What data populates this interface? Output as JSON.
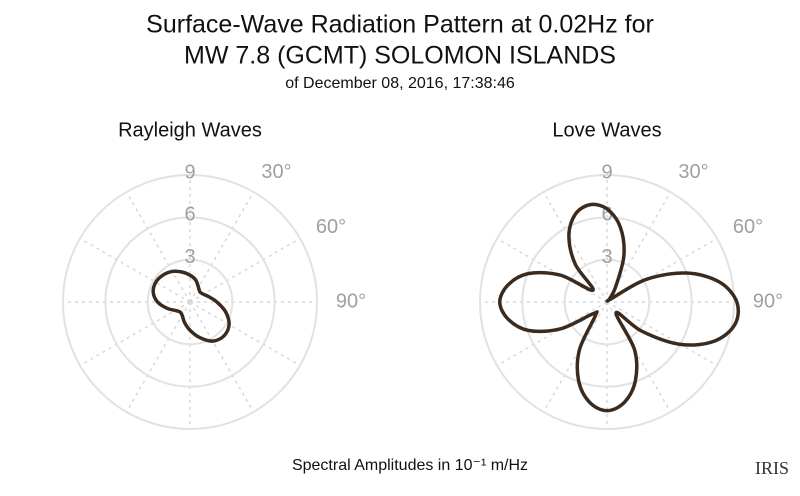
{
  "title": [
    "Surface-Wave Radiation Pattern at 0.02Hz for",
    "MW 7.8 (GCMT) SOLOMON ISLANDS"
  ],
  "subtitle": "of December 08, 2016, 17:38:46",
  "footer": "Spectral Amplitudes in 10⁻¹ m/Hz",
  "logo": "IRIS",
  "chart_data": [
    {
      "type": "polar",
      "title": "Rayleigh Waves",
      "color": "#3b2a1e",
      "theta": [
        0,
        15,
        30,
        45,
        60,
        75,
        90,
        105,
        120,
        135,
        150,
        165,
        180,
        195,
        210,
        225,
        240,
        255,
        270,
        285,
        300,
        315,
        330,
        345
      ],
      "r": [
        1.9,
        1.6,
        1.2,
        1.0,
        1.1,
        1.4,
        1.9,
        2.6,
        3.2,
        3.4,
        3.2,
        2.6,
        2.0,
        1.5,
        1.1,
        1.0,
        1.2,
        1.7,
        2.3,
        2.7,
        2.8,
        2.7,
        2.5,
        2.2
      ],
      "rlim": [
        0,
        9
      ],
      "rticks": [
        3,
        6,
        9
      ],
      "thetaticks": [
        {
          "value": 30,
          "label": "30°"
        },
        {
          "value": 60,
          "label": "60°"
        },
        {
          "value": 90,
          "label": "90°"
        }
      ]
    },
    {
      "type": "polar",
      "title": "Love Waves",
      "color": "#3b2a1e",
      "theta": [
        0,
        10,
        20,
        30,
        40,
        50,
        60,
        70,
        80,
        90,
        100,
        110,
        120,
        130,
        140,
        150,
        160,
        170,
        180,
        190,
        200,
        210,
        220,
        230,
        240,
        250,
        260,
        270,
        280,
        290,
        300,
        310,
        320,
        330,
        340,
        350
      ],
      "r": [
        6.6,
        5.4,
        3.5,
        1.2,
        0.3,
        0.3,
        3.2,
        6.0,
        8.1,
        9.2,
        9.2,
        8.1,
        6.0,
        3.2,
        1.0,
        3.9,
        5.9,
        7.2,
        7.7,
        7.2,
        5.9,
        3.9,
        1.3,
        1.3,
        3.8,
        5.9,
        7.1,
        7.6,
        7.1,
        5.9,
        3.8,
        1.3,
        3.5,
        5.4,
        6.6,
        7.0
      ],
      "rlim": [
        0,
        9
      ],
      "rticks": [
        3,
        6,
        9
      ],
      "thetaticks": [
        {
          "value": 30,
          "label": "30°"
        },
        {
          "value": 60,
          "label": "60°"
        },
        {
          "value": 90,
          "label": "90°"
        }
      ]
    }
  ]
}
